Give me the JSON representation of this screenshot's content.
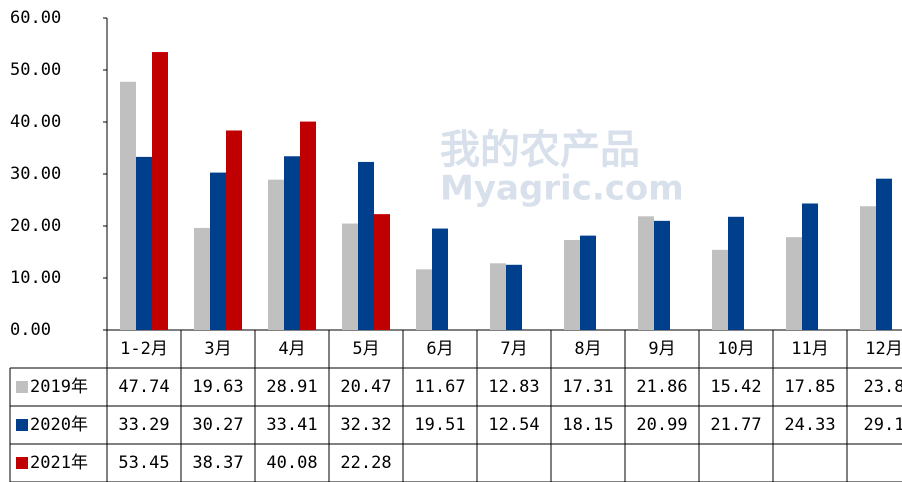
{
  "chart_data": {
    "type": "bar",
    "categories": [
      "1-2月",
      "3月",
      "4月",
      "5月",
      "6月",
      "7月",
      "8月",
      "9月",
      "10月",
      "11月",
      "12月"
    ],
    "series": [
      {
        "name": "2019年",
        "color": "#c0c0c0",
        "values": [
          47.74,
          19.63,
          28.91,
          20.47,
          11.67,
          12.83,
          17.31,
          21.86,
          15.42,
          17.85,
          23.8
        ]
      },
      {
        "name": "2020年",
        "color": "#003f8c",
        "values": [
          33.29,
          30.27,
          33.41,
          32.32,
          19.51,
          12.54,
          18.15,
          20.99,
          21.77,
          24.33,
          29.1
        ]
      },
      {
        "name": "2021年",
        "color": "#c00000",
        "values": [
          53.45,
          38.37,
          40.08,
          22.28,
          null,
          null,
          null,
          null,
          null,
          null,
          null
        ]
      }
    ],
    "ylim": [
      0,
      60
    ],
    "yticks": [
      {
        "value": 0,
        "label": "0.00"
      },
      {
        "value": 10,
        "label": "10.00"
      },
      {
        "value": 20,
        "label": "20.00"
      },
      {
        "value": 30,
        "label": "30.00"
      },
      {
        "value": 40,
        "label": "40.00"
      },
      {
        "value": 50,
        "label": "50.00"
      },
      {
        "value": 60,
        "label": "60.00"
      }
    ],
    "watermark": [
      "我的农产品",
      "Myagric.com"
    ]
  }
}
